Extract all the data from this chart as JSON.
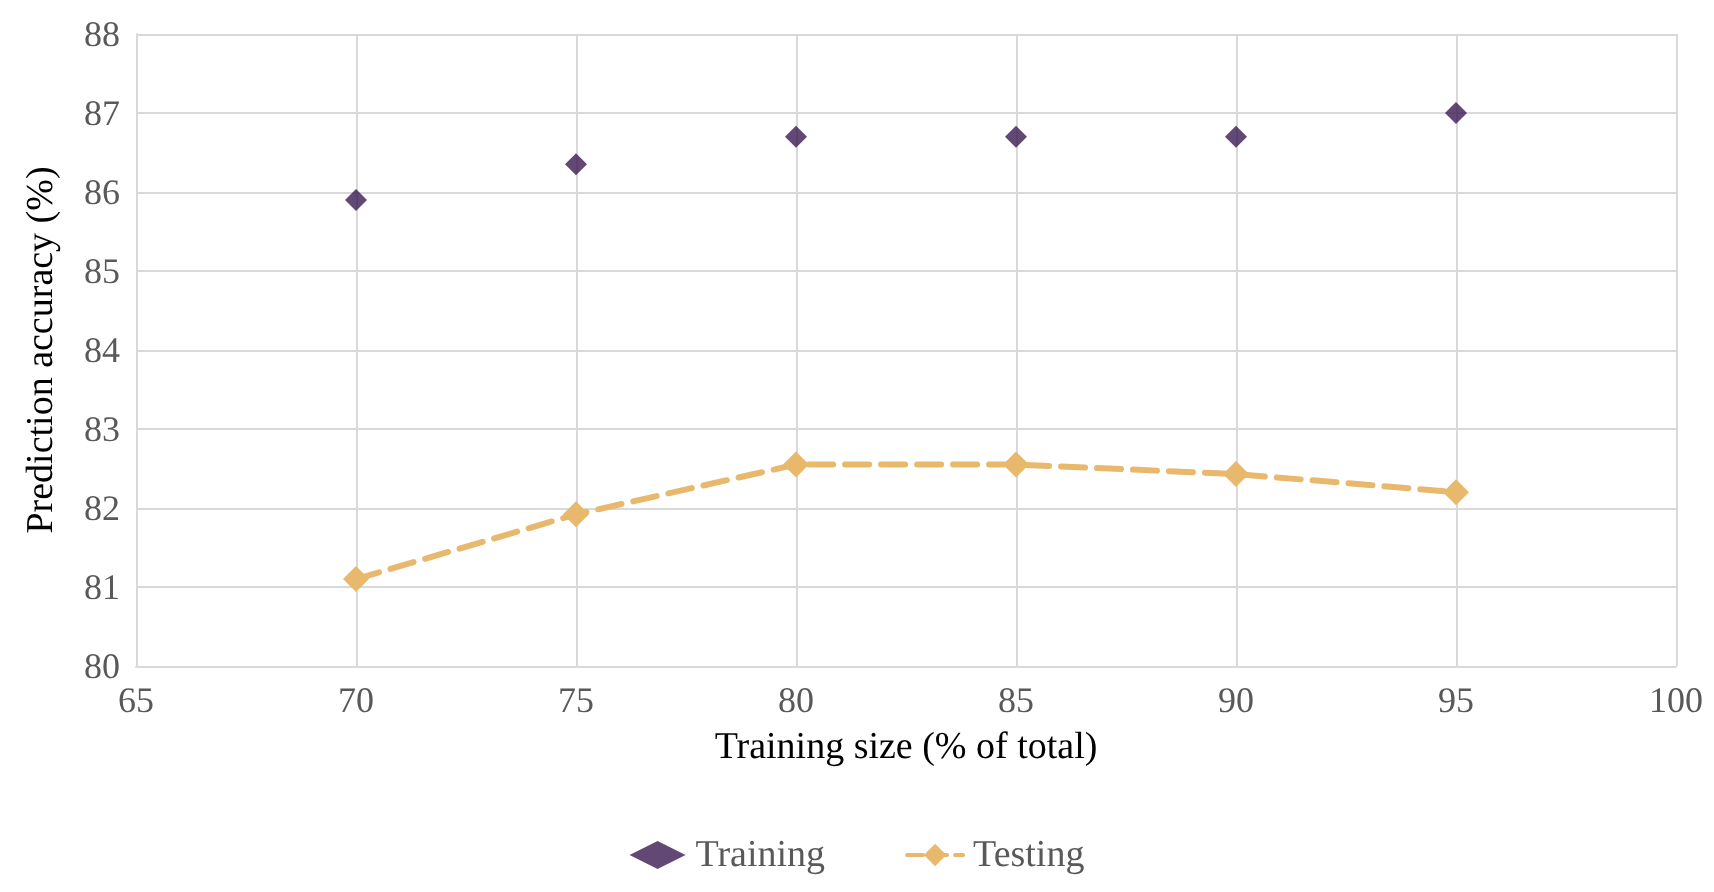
{
  "chart_data": {
    "type": "line",
    "xlabel": "Training size (% of total)",
    "ylabel": "Prediction accuracy (%)",
    "x": [
      70,
      75,
      80,
      85,
      90,
      95
    ],
    "series": [
      {
        "name": "Training",
        "type": "scatter",
        "color": "#3b1a53",
        "values": [
          85.9,
          86.35,
          86.7,
          86.7,
          86.7,
          87.0
        ]
      },
      {
        "name": "Testing",
        "color": "#e8b86d",
        "values": [
          81.1,
          81.92,
          82.55,
          82.55,
          82.43,
          82.2
        ]
      }
    ],
    "xlim": [
      65,
      100
    ],
    "xticks": [
      65,
      70,
      75,
      80,
      85,
      90,
      95,
      100
    ],
    "ylim": [
      80,
      88
    ],
    "yticks": [
      80,
      81,
      82,
      83,
      84,
      85,
      86,
      87,
      88
    ],
    "grid": true,
    "legend": "bottom",
    "marker": "diamond",
    "line_style": "dashed"
  }
}
